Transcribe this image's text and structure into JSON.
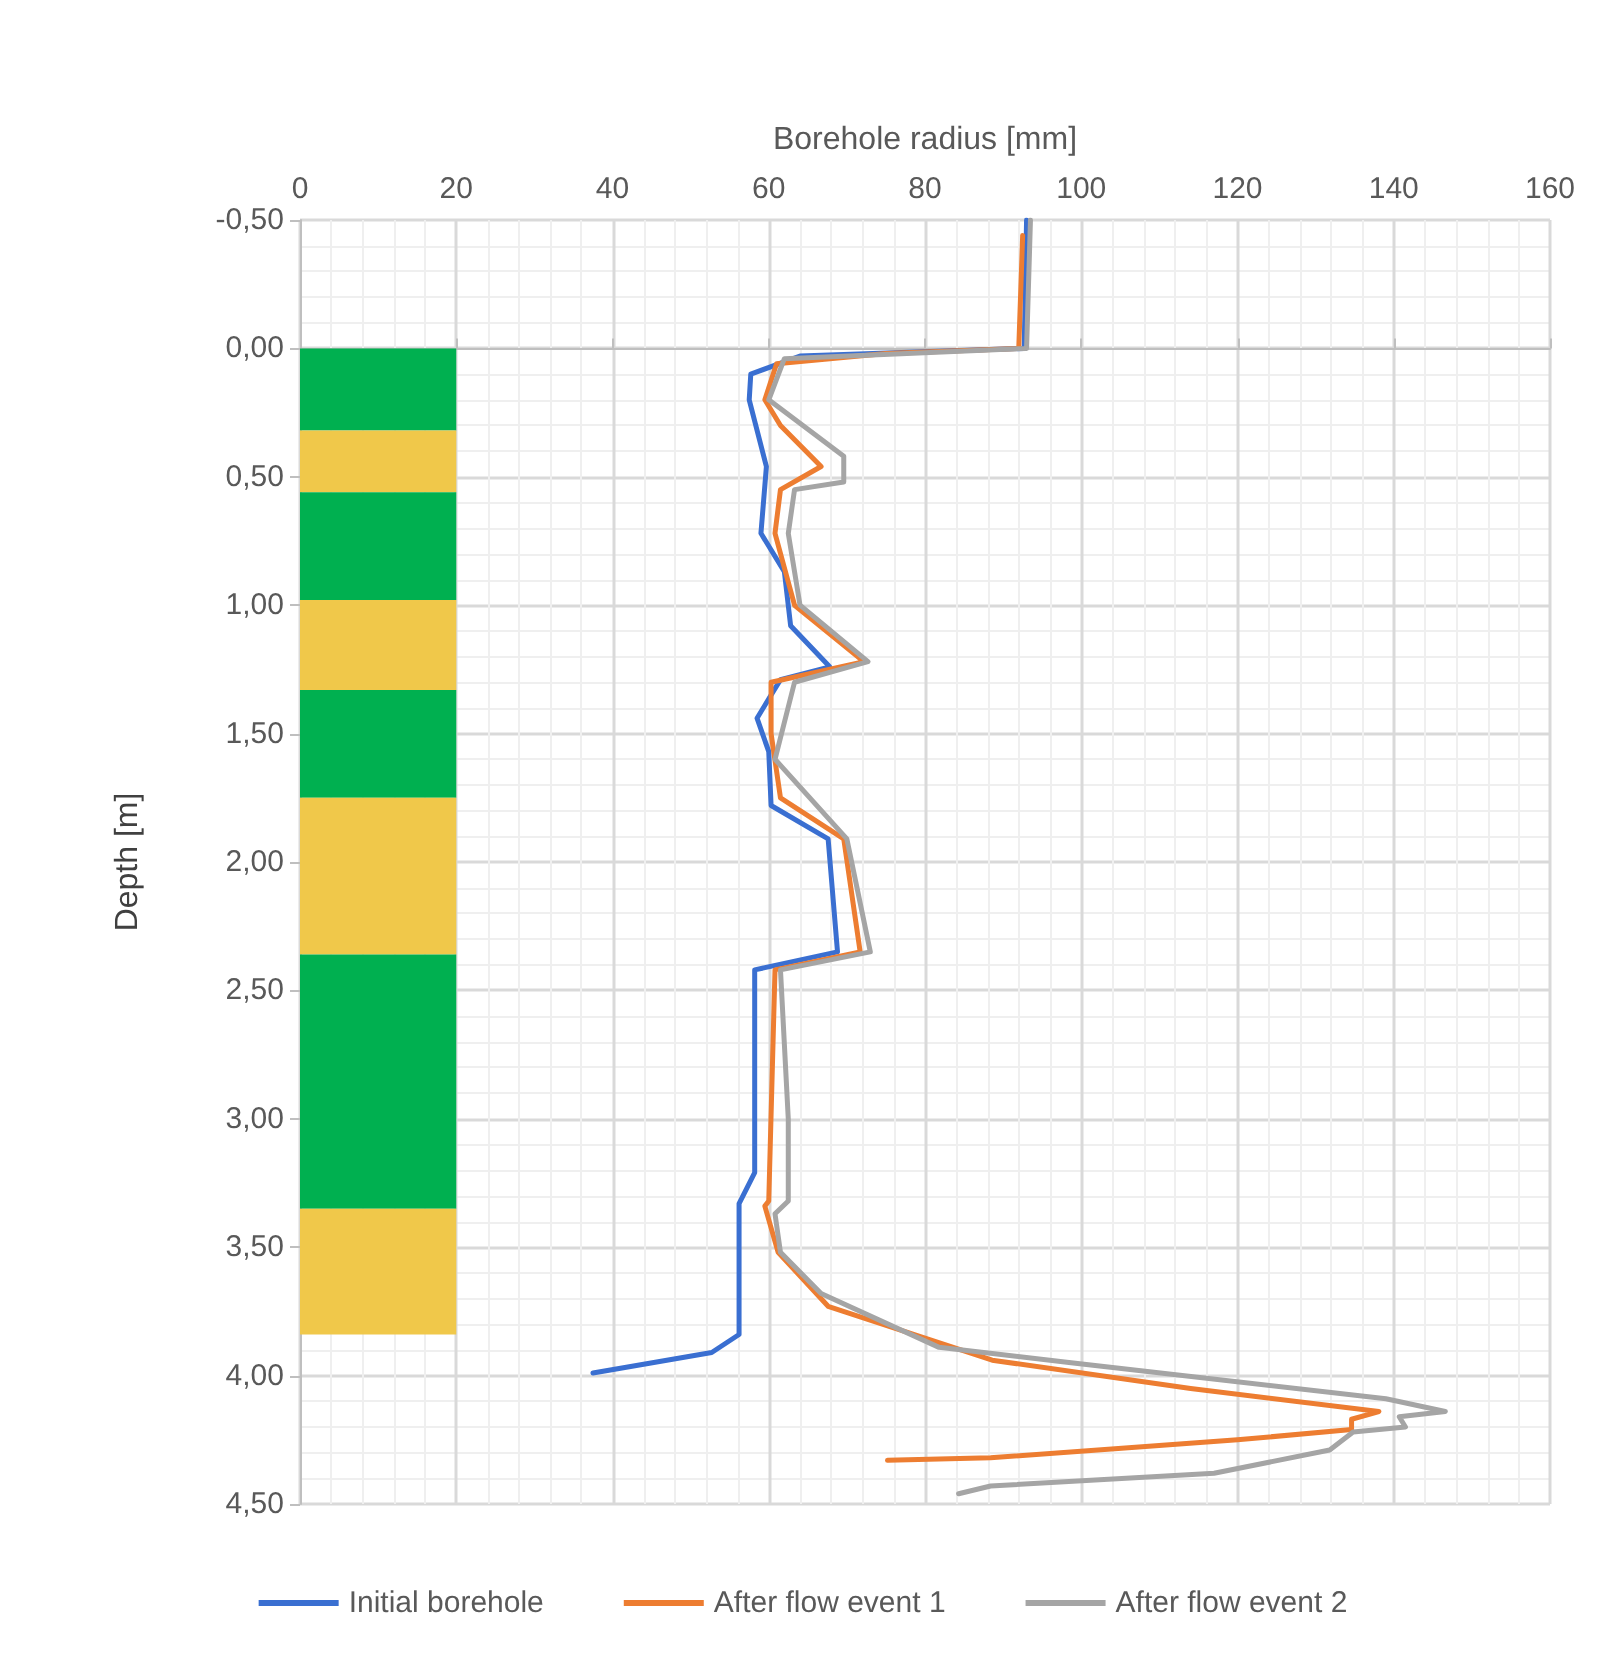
{
  "chart_data": {
    "type": "line",
    "xlabel": "Borehole radius [mm]",
    "ylabel": "Depth [m]",
    "xlim": [
      0,
      160
    ],
    "xticks": [
      0,
      20,
      40,
      60,
      80,
      100,
      120,
      140,
      160
    ],
    "ylim": [
      4.5,
      -0.5
    ],
    "yticks": [
      {
        "value": -0.5,
        "label": "-0,50"
      },
      {
        "value": 0,
        "label": "0,00"
      },
      {
        "value": 0.5,
        "label": "0,50"
      },
      {
        "value": 1,
        "label": "1,00"
      },
      {
        "value": 1.5,
        "label": "1,50"
      },
      {
        "value": 2,
        "label": "2,00"
      },
      {
        "value": 2.5,
        "label": "2,50"
      },
      {
        "value": 3,
        "label": "3,00"
      },
      {
        "value": 3.5,
        "label": "3,50"
      },
      {
        "value": 4,
        "label": "4,00"
      },
      {
        "value": 4.5,
        "label": "4,50"
      }
    ],
    "grid": true,
    "legend": "bottom",
    "marker": "none",
    "line_style": "solid",
    "series": [
      {
        "name": "Initial borehole",
        "color": "#3a6fd1",
        "x": [
          93,
          92.7,
          64,
          57.7,
          57.5,
          59.7,
          59,
          62,
          62.8,
          67.8,
          61.5,
          58.5,
          60,
          60.3,
          67.6,
          68.8,
          58.2,
          58.2,
          56.2,
          56.2,
          52.7,
          37.5
        ],
        "values": [
          -0.5,
          0.0,
          0.03,
          0.1,
          0.2,
          0.46,
          0.72,
          0.87,
          1.08,
          1.24,
          1.29,
          1.44,
          1.57,
          1.78,
          1.91,
          2.35,
          2.42,
          3.21,
          3.33,
          3.84,
          3.91,
          3.99
        ]
      },
      {
        "name": "After flow event 1",
        "color": "#ed7d31",
        "x": [
          92.5,
          92,
          75,
          61,
          59.5,
          61.5,
          66.7,
          61.5,
          60.8,
          63.3,
          72.2,
          60.3,
          60.3,
          61.5,
          69.6,
          71.7,
          60.8,
          60,
          59.5,
          61.2,
          67.6,
          88.6,
          114,
          138.1,
          134.6,
          134.6,
          120,
          88.4,
          75.2
        ],
        "values": [
          -0.44,
          0.0,
          0.02,
          0.06,
          0.2,
          0.3,
          0.46,
          0.55,
          0.72,
          1.0,
          1.22,
          1.3,
          1.5,
          1.75,
          1.91,
          2.35,
          2.42,
          3.32,
          3.34,
          3.52,
          3.73,
          3.94,
          4.05,
          4.14,
          4.17,
          4.21,
          4.25,
          4.32,
          4.33
        ]
      },
      {
        "name": "After flow event 2",
        "color": "#a5a5a5",
        "x": [
          93.5,
          93,
          62,
          60,
          69.6,
          69.6,
          63.3,
          62.5,
          64,
          72.7,
          63.3,
          60.8,
          70,
          73,
          61.5,
          62.5,
          62.5,
          60.8,
          61.5,
          66.7,
          81.8,
          98.7,
          139,
          146.6,
          140.7,
          141.5,
          134.8,
          131.8,
          117,
          88.4,
          84.3
        ],
        "values": [
          -0.5,
          0.0,
          0.04,
          0.2,
          0.42,
          0.52,
          0.55,
          0.72,
          1.0,
          1.22,
          1.3,
          1.6,
          1.91,
          2.35,
          2.42,
          3.0,
          3.32,
          3.37,
          3.52,
          3.68,
          3.89,
          3.95,
          4.09,
          4.14,
          4.16,
          4.2,
          4.22,
          4.29,
          4.38,
          4.43,
          4.46
        ]
      }
    ],
    "bands": [
      {
        "axis": "y",
        "from": 0,
        "to": 0.32,
        "color": "#00b050"
      },
      {
        "axis": "y",
        "from": 0.32,
        "to": 0.56,
        "color": "#f0c84a"
      },
      {
        "axis": "y",
        "from": 0.56,
        "to": 0.98,
        "color": "#00b050"
      },
      {
        "axis": "y",
        "from": 0.98,
        "to": 1.33,
        "color": "#f0c84a"
      },
      {
        "axis": "y",
        "from": 1.33,
        "to": 1.75,
        "color": "#00b050"
      },
      {
        "axis": "y",
        "from": 1.75,
        "to": 2.36,
        "color": "#f0c84a"
      },
      {
        "axis": "y",
        "from": 2.36,
        "to": 3.35,
        "color": "#00b050"
      },
      {
        "axis": "y",
        "from": 3.35,
        "to": 3.84,
        "color": "#f0c84a"
      }
    ]
  }
}
